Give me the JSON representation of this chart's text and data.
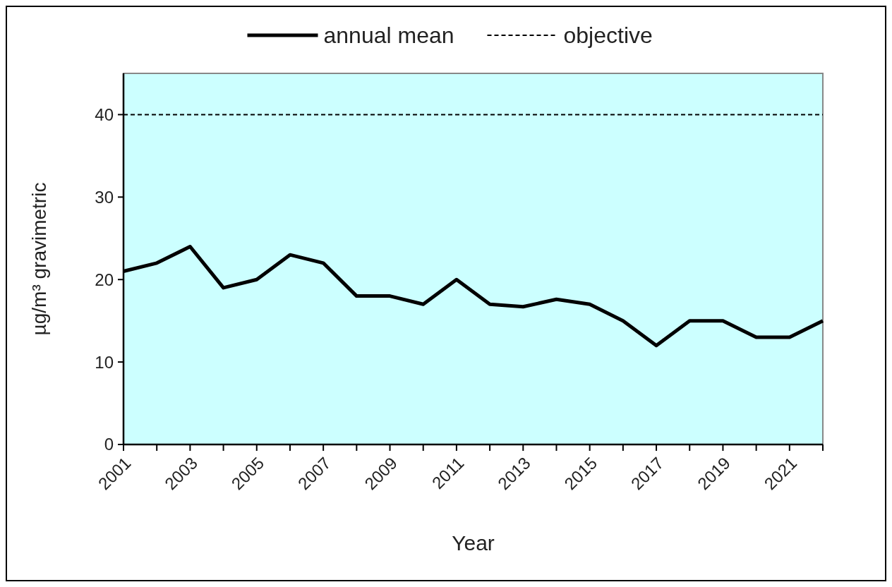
{
  "chart_data": {
    "type": "line",
    "xlabel": "Year",
    "ylabel": "µg/m³ gravimetric",
    "x": [
      2001,
      2002,
      2003,
      2004,
      2005,
      2006,
      2007,
      2008,
      2009,
      2010,
      2011,
      2012,
      2013,
      2014,
      2015,
      2016,
      2017,
      2018,
      2019,
      2020,
      2021,
      2022
    ],
    "series": [
      {
        "name": "annual mean",
        "color": "#000000",
        "values": [
          21,
          22,
          24,
          19,
          20,
          23,
          22,
          18,
          18,
          17,
          20,
          17,
          16.7,
          17.6,
          17,
          15,
          12,
          15,
          15,
          13,
          13,
          15
        ]
      }
    ],
    "ref_lines": [
      {
        "axis": "y",
        "value": 40,
        "label": "objective",
        "color": "#000000",
        "line_style": "dashed"
      }
    ],
    "xlim": [
      2001,
      2022
    ],
    "xticks": [
      2001,
      {
        "value": 2002,
        "label": null
      },
      2003,
      {
        "value": 2004,
        "label": null
      },
      2005,
      {
        "value": 2006,
        "label": null
      },
      2007,
      {
        "value": 2008,
        "label": null
      },
      2009,
      {
        "value": 2010,
        "label": null
      },
      2011,
      {
        "value": 2012,
        "label": null
      },
      2013,
      {
        "value": 2014,
        "label": null
      },
      2015,
      {
        "value": 2016,
        "label": null
      },
      2017,
      {
        "value": 2018,
        "label": null
      },
      2019,
      {
        "value": 2020,
        "label": null
      },
      2021,
      {
        "value": 2022,
        "label": null
      }
    ],
    "ylim": [
      0,
      45
    ],
    "yticks": [
      0,
      10,
      20,
      30,
      40
    ],
    "grid": false,
    "legend": "top",
    "marker": "none",
    "line_style": "solid"
  }
}
